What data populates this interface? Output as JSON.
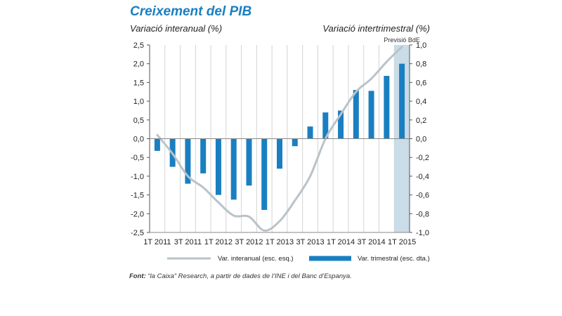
{
  "chart_data": {
    "type": "bar+line",
    "title": "Creixement del PIB",
    "ylabel_left": "Variació interanual (%)",
    "ylabel_right": "Variació intertrimestral (%)",
    "forecast_label": "Previsió BdE",
    "x_tick_labels": [
      "1T 2011",
      "3T 2011",
      "1T 2012",
      "3T 2012",
      "1T 2013",
      "3T 2013",
      "1T 2014",
      "3T 2014",
      "1T 2015"
    ],
    "categories": [
      "1T 2011",
      "2T 2011",
      "3T 2011",
      "4T 2011",
      "1T 2012",
      "2T 2012",
      "3T 2012",
      "4T 2012",
      "1T 2013",
      "2T 2013",
      "3T 2013",
      "4T 2013",
      "1T 2014",
      "2T 2014",
      "3T 2014",
      "4T 2014",
      "1T 2015"
    ],
    "ylim_left": [
      -2.5,
      2.5
    ],
    "yticks_left": [
      "2,5",
      "2,0",
      "1,5",
      "1,0",
      "0,5",
      "0,0",
      "-0,5",
      "-1,0",
      "-1,5",
      "-2,0",
      "-2,5"
    ],
    "ylim_right": [
      -1.0,
      1.0
    ],
    "yticks_right": [
      "1,0",
      "0,8",
      "0,6",
      "0,4",
      "0,2",
      "0,0",
      "-0,2",
      "-0,4",
      "-0,6",
      "-0,8",
      "-1,0"
    ],
    "series": [
      {
        "name": "Var. interanual (esc. esq.)",
        "type": "line",
        "axis": "left",
        "color": "#b9c3c9",
        "values": [
          0.1,
          -0.4,
          -1.0,
          -1.3,
          -1.7,
          -2.05,
          -2.08,
          -2.45,
          -2.2,
          -1.65,
          -1.0,
          0.0,
          0.65,
          1.25,
          1.6,
          2.05,
          2.45
        ]
      },
      {
        "name": "Var. trimestral (esc. dta.)",
        "type": "bar",
        "axis": "right",
        "color": "#1a7fc1",
        "values": [
          -0.13,
          -0.3,
          -0.48,
          -0.37,
          -0.6,
          -0.65,
          -0.5,
          -0.76,
          -0.32,
          -0.08,
          0.13,
          0.28,
          0.3,
          0.52,
          0.51,
          0.67,
          0.8
        ]
      }
    ],
    "forecast_start_index": 16,
    "legend_position": "bottom",
    "grid": "vertical"
  },
  "source": {
    "label": "Font:",
    "text": " “la Caixa” Research, a partir de dades de l’INE i del Banc d’Espanya."
  }
}
